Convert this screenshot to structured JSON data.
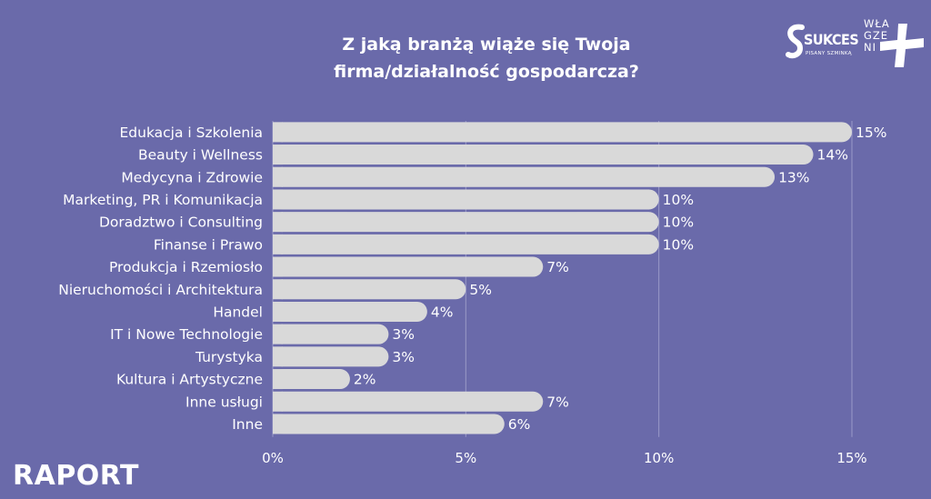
{
  "title": {
    "line1": "Z jaką branżą wiąże się Twoja",
    "line2": "firma/działalność gospodarcza?"
  },
  "footer": {
    "report_label": "RAPORT"
  },
  "logos": {
    "sukces_word": "SUKCES",
    "sukces_tagline": "PISANY SZMINKĄ",
    "wl_letters": [
      "WŁA",
      "GZE",
      "NI"
    ]
  },
  "colors": {
    "background": "#6a6aaa",
    "bar": "#d9d9d9",
    "text": "#ffffff",
    "grid": "#9a9ac8"
  },
  "chart_data": {
    "type": "bar",
    "orientation": "horizontal",
    "categories": [
      "Edukacja i Szkolenia",
      "Beauty i Wellness",
      "Medycyna i Zdrowie",
      "Marketing, PR i Komunikacja",
      "Doradztwo i Consulting",
      "Finanse i Prawo",
      "Produkcja i Rzemiosło",
      "Nieruchomości i Architektura",
      "Handel",
      "IT i Nowe Technologie",
      "Turystyka",
      "Kultura i Artystyczne",
      "Inne usługi",
      "Inne"
    ],
    "values": [
      15,
      14,
      13,
      10,
      10,
      10,
      7,
      5,
      4,
      3,
      3,
      2,
      7,
      6
    ],
    "value_labels": [
      "15%",
      "14%",
      "13%",
      "10%",
      "10%",
      "10%",
      "7%",
      "5%",
      "4%",
      "3%",
      "3%",
      "2%",
      "7%",
      "6%"
    ],
    "xlim": [
      0,
      15
    ],
    "xticks": [
      0,
      5,
      10,
      15
    ],
    "xtick_labels": [
      "0%",
      "5%",
      "10%",
      "15%"
    ],
    "grid": true,
    "legend": "none"
  }
}
